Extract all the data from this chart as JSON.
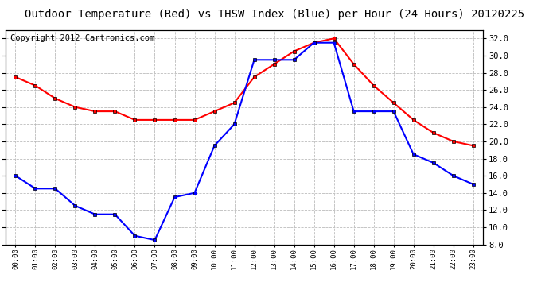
{
  "title": "Outdoor Temperature (Red) vs THSW Index (Blue) per Hour (24 Hours) 20120225",
  "copyright": "Copyright 2012 Cartronics.com",
  "hours": [
    "00:00",
    "01:00",
    "02:00",
    "03:00",
    "04:00",
    "05:00",
    "06:00",
    "07:00",
    "08:00",
    "09:00",
    "10:00",
    "11:00",
    "12:00",
    "13:00",
    "14:00",
    "15:00",
    "16:00",
    "17:00",
    "18:00",
    "19:00",
    "20:00",
    "21:00",
    "22:00",
    "23:00"
  ],
  "red_data": [
    27.5,
    26.5,
    25.0,
    24.0,
    23.5,
    23.5,
    22.5,
    22.5,
    22.5,
    22.5,
    23.5,
    24.5,
    27.5,
    29.0,
    30.5,
    31.5,
    32.0,
    29.0,
    26.5,
    24.5,
    22.5,
    21.0,
    20.0,
    19.5
  ],
  "blue_data": [
    16.0,
    14.5,
    14.5,
    12.5,
    11.5,
    11.5,
    9.0,
    8.5,
    13.5,
    14.0,
    19.5,
    22.0,
    29.5,
    29.5,
    29.5,
    31.5,
    31.5,
    23.5,
    23.5,
    23.5,
    18.5,
    17.5,
    16.0,
    15.0
  ],
  "ylim": [
    8.0,
    33.0
  ],
  "yticks": [
    8.0,
    10.0,
    12.0,
    14.0,
    16.0,
    18.0,
    20.0,
    22.0,
    24.0,
    26.0,
    28.0,
    30.0,
    32.0
  ],
  "red_color": "#ff0000",
  "blue_color": "#0000ff",
  "bg_color": "#ffffff",
  "grid_color": "#bbbbbb",
  "title_fontsize": 10,
  "copyright_fontsize": 7.5
}
